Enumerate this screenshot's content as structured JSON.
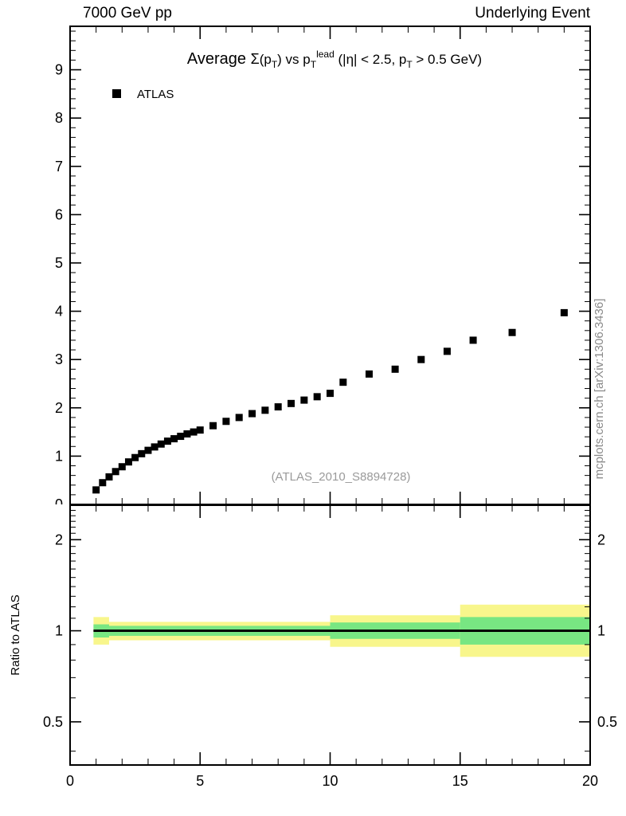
{
  "header": {
    "left": "7000 GeV pp",
    "right": "Underlying Event"
  },
  "side_credit": "mcplots.cern.ch [arXiv:1306.3436]",
  "watermark": "(ATLAS_2010_S8894728)",
  "legend": {
    "label": "ATLAS"
  },
  "ratio_ylabel": "Ratio to ATLAS",
  "colors": {
    "band_outer": "#f8f68c",
    "band_inner": "#78e682",
    "marker": "#000000",
    "frame": "#000000",
    "muted_text": "#9a9a9a"
  },
  "chart_data": {
    "type": "scatter",
    "title": "Average Σ(p_T) vs p_T^lead (|η| < 2.5, p_T > 0.5 GeV)",
    "title_segments": [
      {
        "t": "Average ",
        "size": 20
      },
      {
        "t": "Σ",
        "size": 18
      },
      {
        "t": "(p",
        "size": 17
      },
      {
        "t": "T",
        "size": 12,
        "off": 5
      },
      {
        "t": ") vs p",
        "size": 17
      },
      {
        "t": "T",
        "size": 12,
        "off": 5
      },
      {
        "t": "lead",
        "size": 12,
        "off": -8
      },
      {
        "t": " (|η| < 2.5, p",
        "size": 17
      },
      {
        "t": "T",
        "size": 12,
        "off": 5
      },
      {
        "t": " > 0.5 GeV)",
        "size": 17
      }
    ],
    "main": {
      "xlim": [
        0,
        20
      ],
      "ylim": [
        0,
        9.9
      ],
      "xticks": [
        0,
        5,
        10,
        15,
        20
      ],
      "yticks": [
        0,
        1,
        2,
        3,
        4,
        5,
        6,
        7,
        8,
        9
      ],
      "x_minor_step": 1,
      "y_minor_step": 0.2,
      "grid": false,
      "legend_position": "top-left",
      "series": [
        {
          "name": "ATLAS",
          "marker": "square",
          "points": [
            [
              1.0,
              0.3
            ],
            [
              1.25,
              0.45
            ],
            [
              1.5,
              0.57
            ],
            [
              1.75,
              0.68
            ],
            [
              2.0,
              0.78
            ],
            [
              2.25,
              0.88
            ],
            [
              2.5,
              0.97
            ],
            [
              2.75,
              1.05
            ],
            [
              3.0,
              1.12
            ],
            [
              3.25,
              1.19
            ],
            [
              3.5,
              1.25
            ],
            [
              3.75,
              1.31
            ],
            [
              4.0,
              1.36
            ],
            [
              4.25,
              1.41
            ],
            [
              4.5,
              1.46
            ],
            [
              4.75,
              1.5
            ],
            [
              5.0,
              1.54
            ],
            [
              5.5,
              1.63
            ],
            [
              6.0,
              1.72
            ],
            [
              6.5,
              1.8
            ],
            [
              7.0,
              1.88
            ],
            [
              7.5,
              1.95
            ],
            [
              8.0,
              2.02
            ],
            [
              8.5,
              2.09
            ],
            [
              9.0,
              2.16
            ],
            [
              9.5,
              2.23
            ],
            [
              10.0,
              2.3
            ],
            [
              10.5,
              2.53
            ],
            [
              11.5,
              2.7
            ],
            [
              12.5,
              2.8
            ],
            [
              13.5,
              3.0
            ],
            [
              14.5,
              3.17
            ],
            [
              15.5,
              3.4
            ],
            [
              17.0,
              3.56
            ],
            [
              19.0,
              3.97
            ]
          ]
        }
      ]
    },
    "ratio": {
      "scale": "log",
      "ylim": [
        0.36,
        2.6
      ],
      "yticks": [
        0.5,
        1,
        2
      ],
      "yminor": [
        0.4,
        0.6,
        0.7,
        0.8,
        0.9,
        1.1,
        1.2,
        1.3,
        1.4,
        1.5,
        1.6,
        1.7,
        1.8,
        1.9,
        2.1,
        2.2,
        2.3,
        2.4,
        2.5
      ],
      "line_y": 1,
      "line_x": [
        0.9,
        20
      ],
      "bands": [
        {
          "x0": 0.9,
          "x1": 1.5,
          "outer": [
            0.9,
            1.11
          ],
          "inner": [
            0.95,
            1.05
          ]
        },
        {
          "x0": 1.5,
          "x1": 10.0,
          "outer": [
            0.93,
            1.07
          ],
          "inner": [
            0.962,
            1.038
          ]
        },
        {
          "x0": 10.0,
          "x1": 15.0,
          "outer": [
            0.885,
            1.125
          ],
          "inner": [
            0.94,
            1.065
          ]
        },
        {
          "x0": 15.0,
          "x1": 20.0,
          "outer": [
            0.82,
            1.22
          ],
          "inner": [
            0.9,
            1.11
          ]
        }
      ]
    }
  }
}
